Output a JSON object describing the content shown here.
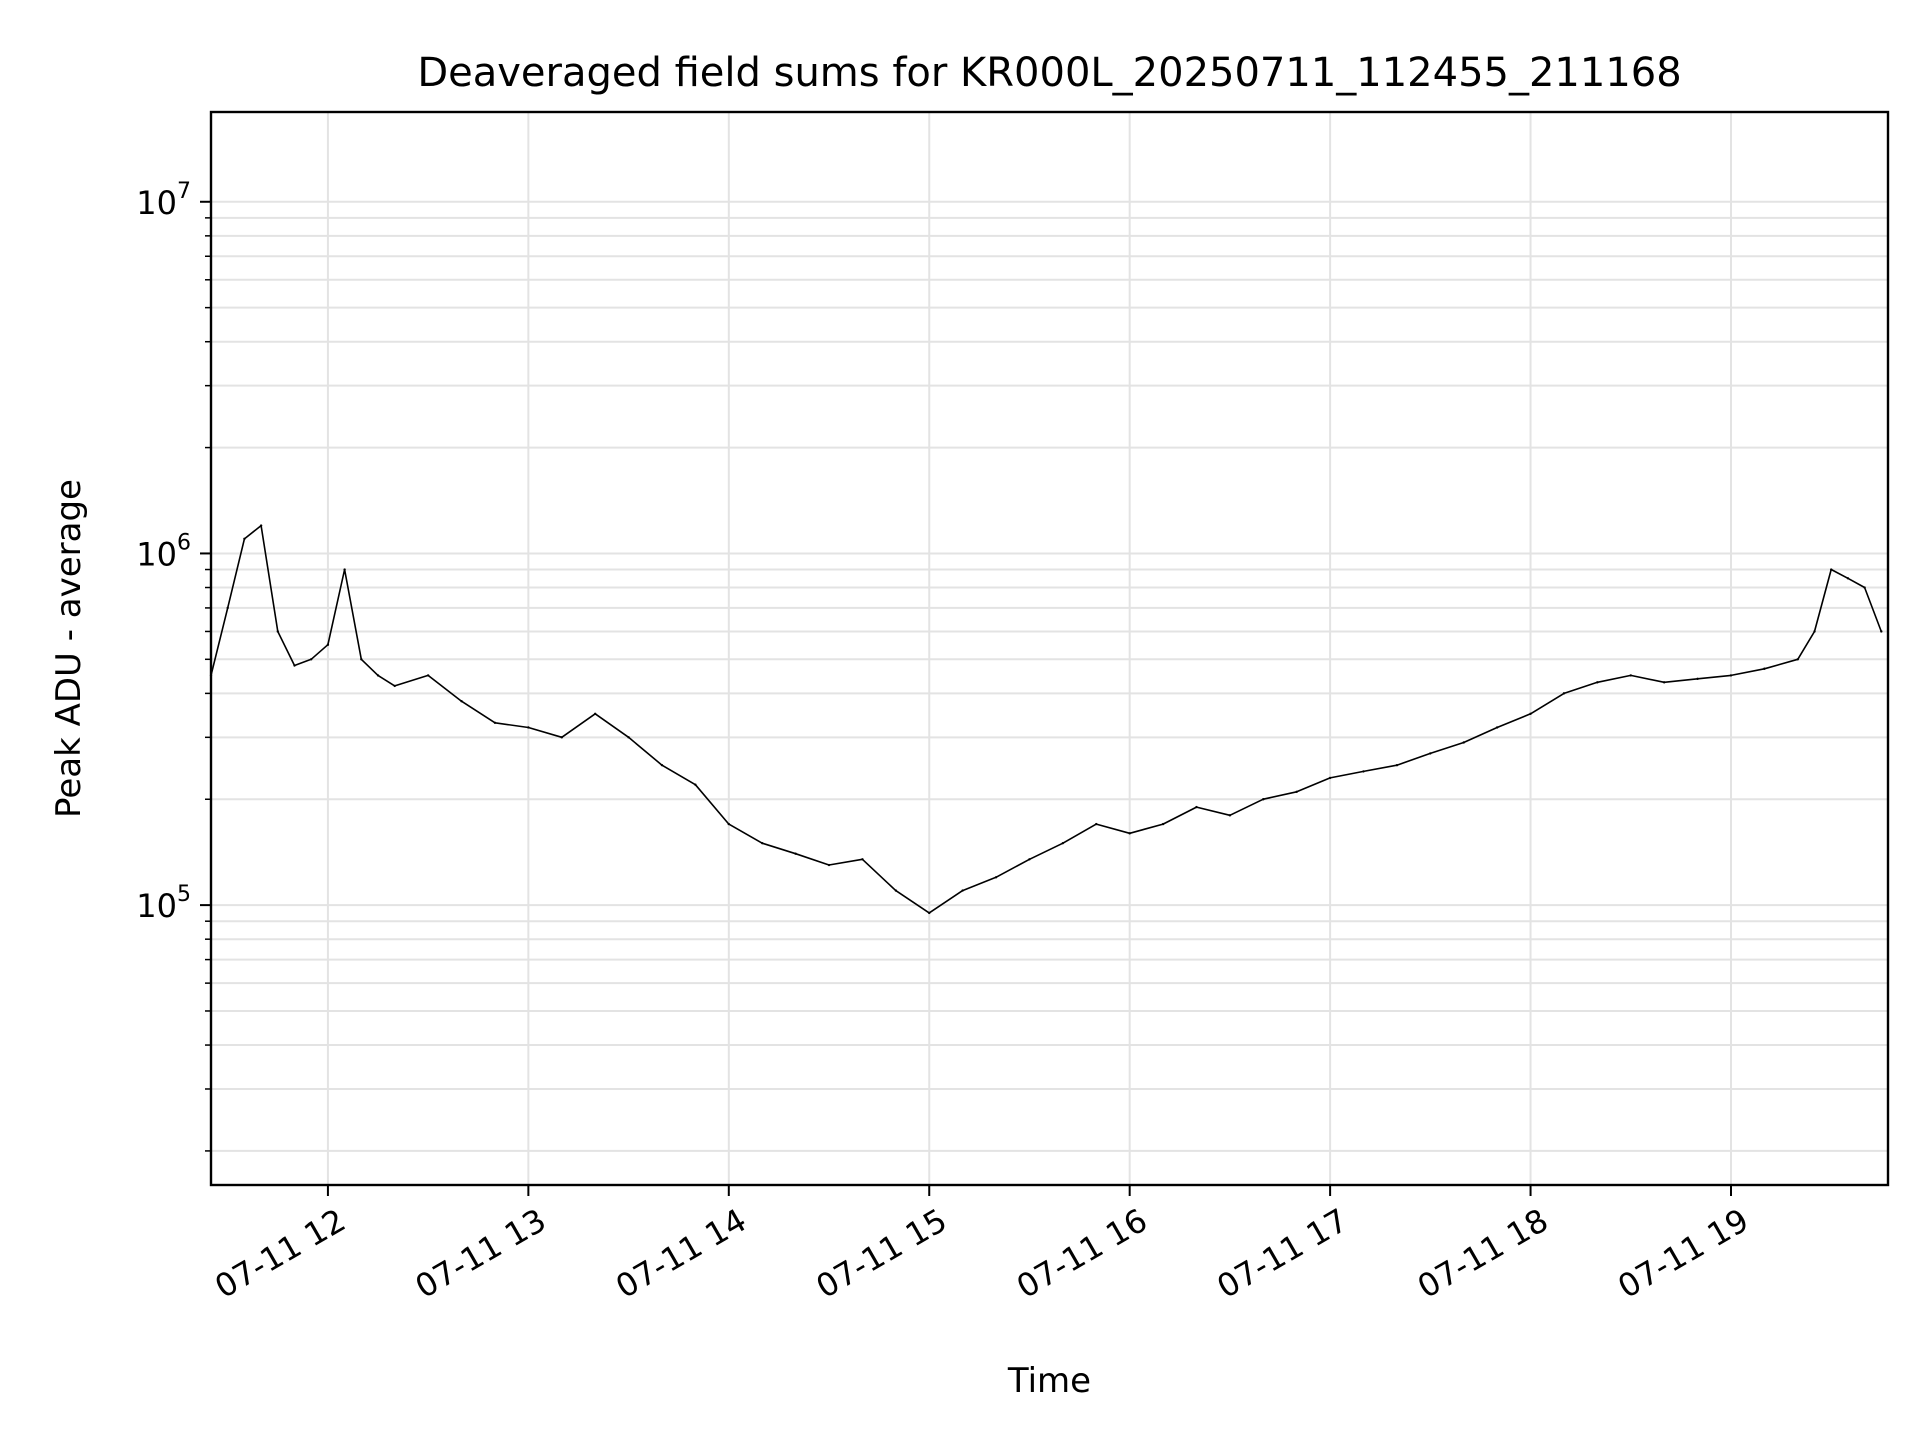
{
  "chart_data": {
    "type": "line",
    "title": "Deaveraged field sums for KR000L_20250711_112455_211168",
    "xlabel": "Time",
    "ylabel": "Peak ADU - average",
    "x_scale": "time",
    "y_scale": "log",
    "xlim": [
      "2025-07-11T11:25:00",
      "2025-07-11T19:47:00"
    ],
    "ylim": [
      16000,
      18000000
    ],
    "grid": true,
    "line_color": "#000000",
    "x_ticks": [
      {
        "value": "2025-07-11T12:00:00",
        "label": "07-11 12"
      },
      {
        "value": "2025-07-11T13:00:00",
        "label": "07-11 13"
      },
      {
        "value": "2025-07-11T14:00:00",
        "label": "07-11 14"
      },
      {
        "value": "2025-07-11T15:00:00",
        "label": "07-11 15"
      },
      {
        "value": "2025-07-11T16:00:00",
        "label": "07-11 16"
      },
      {
        "value": "2025-07-11T17:00:00",
        "label": "07-11 17"
      },
      {
        "value": "2025-07-11T18:00:00",
        "label": "07-11 18"
      },
      {
        "value": "2025-07-11T19:00:00",
        "label": "07-11 19"
      }
    ],
    "y_ticks": [
      {
        "value": 100000,
        "base": "10",
        "exp": "5"
      },
      {
        "value": 1000000,
        "base": "10",
        "exp": "6"
      },
      {
        "value": 10000000,
        "base": "10",
        "exp": "7"
      }
    ],
    "series": [
      {
        "x": [
          "2025-07-11T11:25:00",
          "2025-07-11T11:30:00",
          "2025-07-11T11:35:00",
          "2025-07-11T11:40:00",
          "2025-07-11T11:45:00",
          "2025-07-11T11:50:00",
          "2025-07-11T11:55:00",
          "2025-07-11T12:00:00",
          "2025-07-11T12:05:00",
          "2025-07-11T12:10:00",
          "2025-07-11T12:15:00",
          "2025-07-11T12:20:00",
          "2025-07-11T12:30:00",
          "2025-07-11T12:40:00",
          "2025-07-11T12:50:00",
          "2025-07-11T13:00:00",
          "2025-07-11T13:10:00",
          "2025-07-11T13:20:00",
          "2025-07-11T13:30:00",
          "2025-07-11T13:40:00",
          "2025-07-11T13:50:00",
          "2025-07-11T14:00:00",
          "2025-07-11T14:10:00",
          "2025-07-11T14:20:00",
          "2025-07-11T14:30:00",
          "2025-07-11T14:40:00",
          "2025-07-11T14:50:00",
          "2025-07-11T15:00:00",
          "2025-07-11T15:10:00",
          "2025-07-11T15:20:00",
          "2025-07-11T15:30:00",
          "2025-07-11T15:40:00",
          "2025-07-11T15:50:00",
          "2025-07-11T16:00:00",
          "2025-07-11T16:10:00",
          "2025-07-11T16:20:00",
          "2025-07-11T16:30:00",
          "2025-07-11T16:40:00",
          "2025-07-11T16:50:00",
          "2025-07-11T17:00:00",
          "2025-07-11T17:10:00",
          "2025-07-11T17:20:00",
          "2025-07-11T17:30:00",
          "2025-07-11T17:40:00",
          "2025-07-11T17:50:00",
          "2025-07-11T18:00:00",
          "2025-07-11T18:10:00",
          "2025-07-11T18:20:00",
          "2025-07-11T18:30:00",
          "2025-07-11T18:40:00",
          "2025-07-11T18:50:00",
          "2025-07-11T19:00:00",
          "2025-07-11T19:10:00",
          "2025-07-11T19:20:00",
          "2025-07-11T19:25:00",
          "2025-07-11T19:30:00",
          "2025-07-11T19:35:00",
          "2025-07-11T19:40:00",
          "2025-07-11T19:45:00"
        ],
        "values": [
          450000,
          700000,
          1100000,
          1200000,
          600000,
          480000,
          500000,
          550000,
          900000,
          500000,
          450000,
          420000,
          450000,
          380000,
          330000,
          320000,
          300000,
          350000,
          300000,
          250000,
          220000,
          170000,
          150000,
          140000,
          130000,
          135000,
          110000,
          95000,
          110000,
          120000,
          135000,
          150000,
          170000,
          160000,
          170000,
          190000,
          180000,
          200000,
          210000,
          230000,
          240000,
          250000,
          270000,
          290000,
          320000,
          350000,
          400000,
          430000,
          450000,
          430000,
          440000,
          450000,
          470000,
          500000,
          600000,
          900000,
          850000,
          800000,
          600000
        ]
      }
    ]
  }
}
